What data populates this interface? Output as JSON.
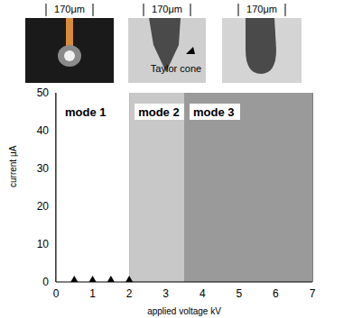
{
  "images": [
    {
      "label": "170μm"
    },
    {
      "label": "170μm",
      "annotation": "Taylor cone"
    },
    {
      "label": "170μm"
    }
  ],
  "chart_data": {
    "type": "scatter",
    "x_label": "applied voltage kV",
    "y_label": "current μA",
    "x": [
      0.5,
      1,
      1.5,
      2
    ],
    "values": [
      0,
      0,
      0,
      0
    ],
    "color": "#000000",
    "marker": "triangle",
    "xlim": [
      0,
      7
    ],
    "ylim": [
      0,
      50
    ],
    "xticks": [
      0,
      1,
      2,
      3,
      4,
      5,
      6,
      7
    ],
    "yticks": [
      0,
      10,
      20,
      30,
      40,
      50
    ],
    "grid": true,
    "regions": [
      {
        "label": "mode 1",
        "x": [
          0,
          2
        ],
        "color": "#ffffff"
      },
      {
        "label": "mode 2",
        "x": [
          2,
          3.5
        ],
        "color": "#c8c8c8"
      },
      {
        "label": "mode 3",
        "x": [
          3.5,
          7
        ],
        "color": "#9a9a9a"
      }
    ]
  }
}
